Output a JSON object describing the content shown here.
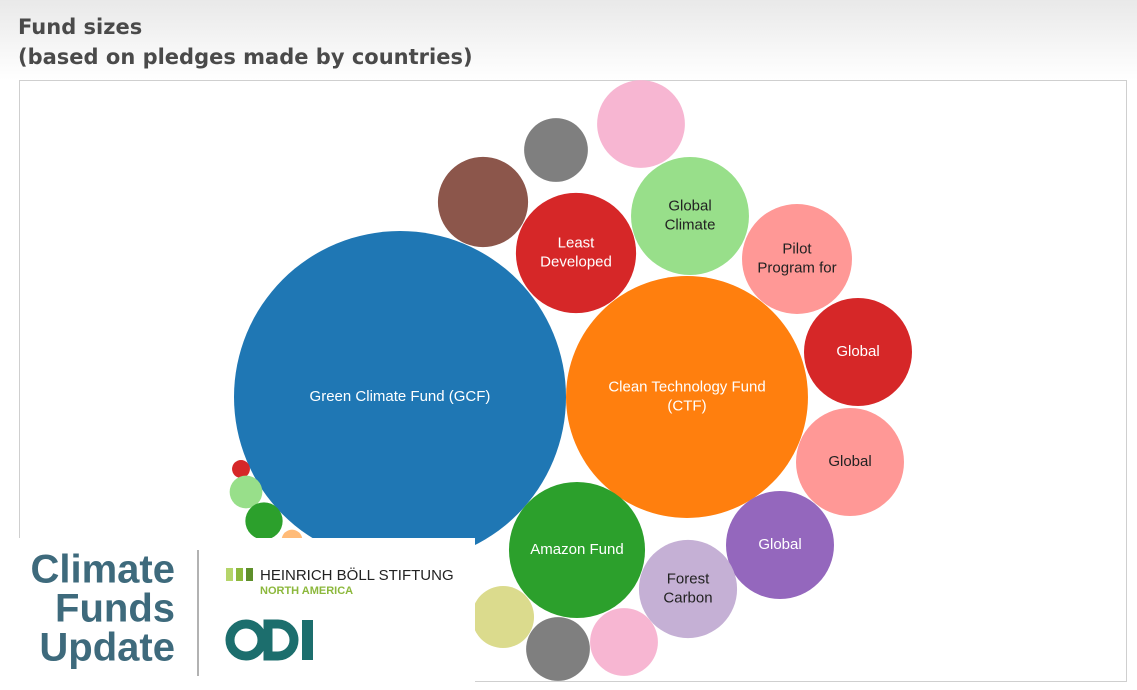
{
  "chart_data": {
    "type": "bubble",
    "title": "Fund sizes",
    "subtitle": "(based on pledges made by countries)",
    "categories": [
      "Green Climate Fund (GCF)",
      "Clean Technology Fund (CTF)",
      "Least Developed",
      "Global Climate",
      "Pilot Program for",
      "Global",
      "Global",
      "Global",
      "Forest Carbon",
      "Amazon Fund",
      null,
      null,
      null,
      null,
      null,
      null,
      null,
      null,
      null,
      null
    ],
    "values": [
      10.3,
      5.47,
      1.35,
      1.3,
      1.13,
      1.09,
      1.09,
      1.09,
      0.9,
      1.73,
      0.43,
      0.38,
      0.36,
      0.76,
      0.38,
      0.72,
      0.03,
      0.1,
      0.13,
      0.04
    ],
    "colors": [
      "#1f77b4",
      "#ff7f0e",
      "#d62728",
      "#98df8a",
      "#ff9896",
      "#d62728",
      "#ff9896",
      "#9467bd",
      "#c5b0d5",
      "#2ca02c",
      "#f7b6d2",
      "#7f7f7f",
      "#dbdb8d",
      "#8c564b",
      "#7f7f7f",
      "#f7b6d2",
      "#d62728",
      "#98df8a",
      "#2ca02c",
      "#ffbb78"
    ]
  },
  "logo": {
    "name_lines": [
      "Climate",
      "Funds",
      "Update"
    ],
    "partner": "HEINRICH BÖLL STIFTUNG",
    "partner_sub": "NORTH AMERICA"
  }
}
